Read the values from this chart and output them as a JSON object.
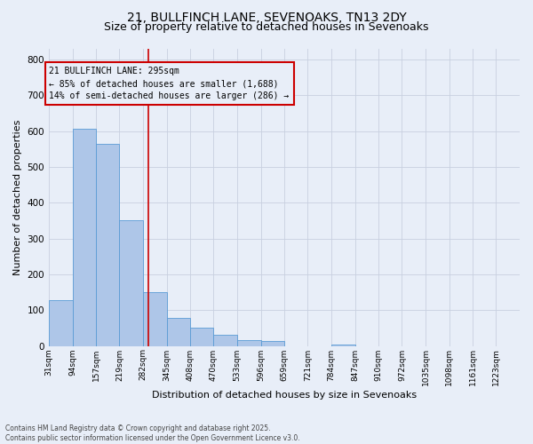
{
  "title_line1": "21, BULLFINCH LANE, SEVENOAKS, TN13 2DY",
  "title_line2": "Size of property relative to detached houses in Sevenoaks",
  "xlabel": "Distribution of detached houses by size in Sevenoaks",
  "ylabel": "Number of detached properties",
  "bar_edges": [
    31,
    94,
    157,
    219,
    282,
    345,
    408,
    470,
    533,
    596,
    659,
    721,
    784,
    847,
    910,
    972,
    1035,
    1098,
    1161,
    1223,
    1286
  ],
  "bar_heights": [
    128,
    607,
    565,
    350,
    150,
    78,
    50,
    30,
    15,
    14,
    0,
    0,
    5,
    0,
    0,
    0,
    0,
    0,
    0,
    0
  ],
  "bar_color": "#aec6e8",
  "bar_edgecolor": "#5a9bd5",
  "property_size": 295,
  "annotation_text": "21 BULLFINCH LANE: 295sqm\n← 85% of detached houses are smaller (1,688)\n14% of semi-detached houses are larger (286) →",
  "annotation_box_edgecolor": "#cc0000",
  "vline_color": "#cc0000",
  "ylim": [
    0,
    830
  ],
  "yticks": [
    0,
    100,
    200,
    300,
    400,
    500,
    600,
    700,
    800
  ],
  "bg_color": "#e8eef8",
  "grid_color": "#c8d0e0",
  "footer_text": "Contains HM Land Registry data © Crown copyright and database right 2025.\nContains public sector information licensed under the Open Government Licence v3.0.",
  "title_fontsize": 10,
  "subtitle_fontsize": 9,
  "tick_label_fontsize": 6.5,
  "axis_label_fontsize": 8
}
